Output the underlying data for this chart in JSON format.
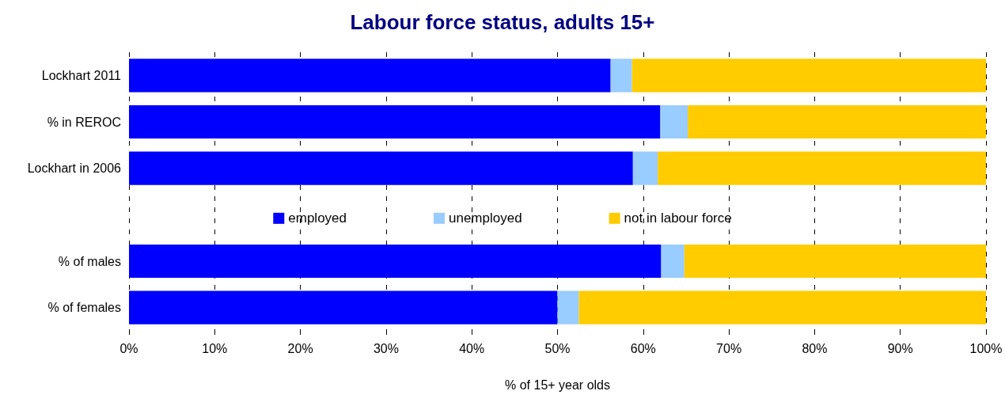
{
  "chart_data": {
    "type": "bar",
    "title": "Labour force status, adults 15+",
    "xlabel": "% of 15+ year olds",
    "orientation": "horizontal",
    "stacked": true,
    "categories": [
      "Lockhart 2011",
      "% in REROC",
      "Lockhart in 2006",
      null,
      "% of males",
      "% of females"
    ],
    "series": [
      {
        "name": "employed",
        "color": "#0000ff",
        "values": [
          56.2,
          62.0,
          58.8,
          null,
          62.1,
          50.0
        ]
      },
      {
        "name": "unemployed",
        "color": "#99ccff",
        "values": [
          2.5,
          3.2,
          2.9,
          null,
          2.7,
          2.5
        ]
      },
      {
        "name": "not in labour force",
        "color": "#ffcc00",
        "values": [
          41.3,
          34.8,
          38.3,
          null,
          35.2,
          47.5
        ]
      }
    ],
    "xlim": [
      0,
      100
    ],
    "xticks": [
      {
        "value": 0,
        "label": "0%"
      },
      {
        "value": 10,
        "label": "10%"
      },
      {
        "value": 20,
        "label": "20%"
      },
      {
        "value": 30,
        "label": "30%"
      },
      {
        "value": 40,
        "label": "40%"
      },
      {
        "value": 50,
        "label": "50%"
      },
      {
        "value": 60,
        "label": "60%"
      },
      {
        "value": 70,
        "label": "70%"
      },
      {
        "value": 80,
        "label": "80%"
      },
      {
        "value": 90,
        "label": "90%"
      },
      {
        "value": 100,
        "label": "100%"
      }
    ],
    "grid": "x",
    "legend": "center"
  }
}
